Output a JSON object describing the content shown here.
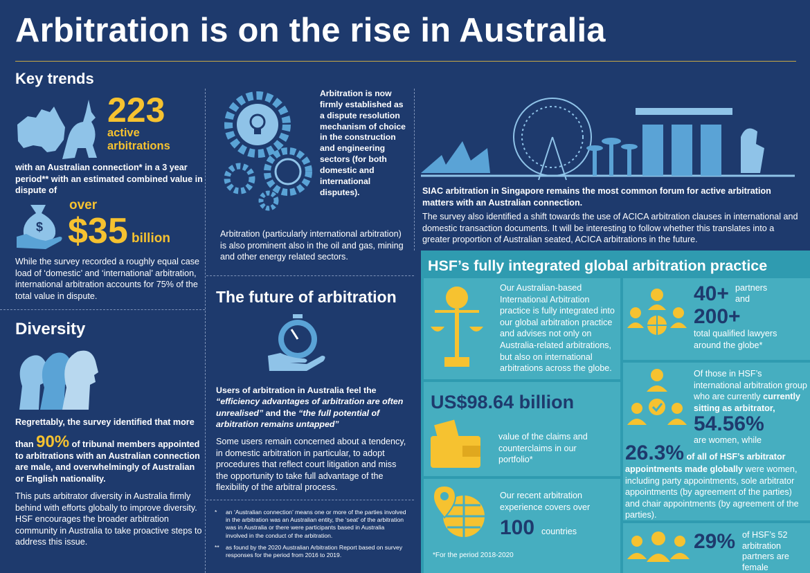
{
  "header": {
    "title": "Arbitration is on the rise in Australia"
  },
  "key_trends": {
    "heading": "Key trends",
    "stat_number": "223",
    "stat_label": "active arbitrations",
    "stat_text": "with an Australian connection* in a 3 year period** with an estimated combined value in dispute of",
    "value_prefix": "over",
    "value_number": "$35",
    "value_unit": "billion",
    "paragraph": "While the survey recorded a roughly equal case load of ‘domestic’ and ‘international’ arbitration, international arbitration accounts for 75% of the total value in dispute."
  },
  "established": {
    "text": "Arbitration is now firmly established as a dispute resolution mechanism of choice in the construction and engineering sectors (for both domestic and international disputes).",
    "paragraph": "Arbitration (particularly international arbitration) is also prominent also in the oil and gas, mining and other energy related sectors."
  },
  "singapore": {
    "lead": "SIAC arbitration in Singapore remains the most common forum for active arbitration matters with an Australian connection.",
    "text": "The survey also identified a shift towards the use of ACICA arbitration clauses in international and domestic transaction documents. It will be interesting to follow whether this translates into a greater proportion of Australian seated, ACICA arbitrations in the future."
  },
  "diversity": {
    "heading": "Diversity",
    "intro": "Regrettably, the survey identified that more",
    "stat_prefix": "than",
    "stat_number": "90%",
    "stat_text": "of tribunal members appointed to arbitrations with an Australian connection are male, and overwhelmingly of Australian or English nationality.",
    "paragraph": "This puts arbitrator diversity in Australia firmly behind with efforts globally to improve diversity. HSF encourages the broader arbitration community in Australia to take proactive steps to address this issue."
  },
  "future": {
    "heading": "The future of arbitration",
    "quote_intro": "Users of arbitration in Australia feel the",
    "quote_1": "“efficiency advantages of arbitration are often unrealised”",
    "quote_join": "and the",
    "quote_2": "“the full potential of arbitration remains untapped”",
    "paragraph": "Some users remain concerned about a tendency, in domestic arbitration in particular, to adopt procedures that reflect court litigation and miss the opportunity to take full advantage of the flexibility of the arbitral process."
  },
  "footnotes": [
    {
      "marker": "*",
      "text": "an ‘Australian connection’ means one or more of the parties involved in the arbitration was an Australian entity, the ‘seat’ of the arbitration was in Australia or there were participants based in Australia involved in the conduct of the arbitration."
    },
    {
      "marker": "**",
      "text": "as found by the 2020 Australian Arbitration Report based on survey responses for the period from 2016 to 2019."
    }
  ],
  "hsf": {
    "heading": "HSF’s fully integrated global arbitration practice",
    "integration_text": "Our Australian-based International Arbitration practice is fully integrated into our global arbitration practice and advises not only on Australia-related arbitrations, but also on international arbitrations across the globe.",
    "portfolio_value": "US$98.64 billion",
    "portfolio_text": "value of the claims and counterclaims in our portfolio*",
    "experience_text": "Our recent arbitration experience covers over",
    "countries_number": "100",
    "countries_label": "countries",
    "period_note": "*For the period 2018-2020",
    "partners_number": "40+",
    "partners_label": "partners",
    "partners_join": "and",
    "lawyers_number": "200+",
    "lawyers_label": "total qualified lawyers around the globe*",
    "sitting_text": "Of those in HSF’s international arbitration group who are currently",
    "sitting_bold": "currently sitting as arbitrator,",
    "sitting_percent": "54.56%",
    "sitting_label": "are women, while",
    "appointments_percent": "26.3%",
    "appointments_bold": "of all of HSF’s arbitrator appointments made globally",
    "appointments_text": "were women, including party appointments, sole arbitrator appointments (by agreement of the parties) and chair appointments (by agreement of the parties).",
    "female_partners_percent": "29%",
    "female_partners_text": "of HSF’s 52 arbitration partners are female"
  }
}
